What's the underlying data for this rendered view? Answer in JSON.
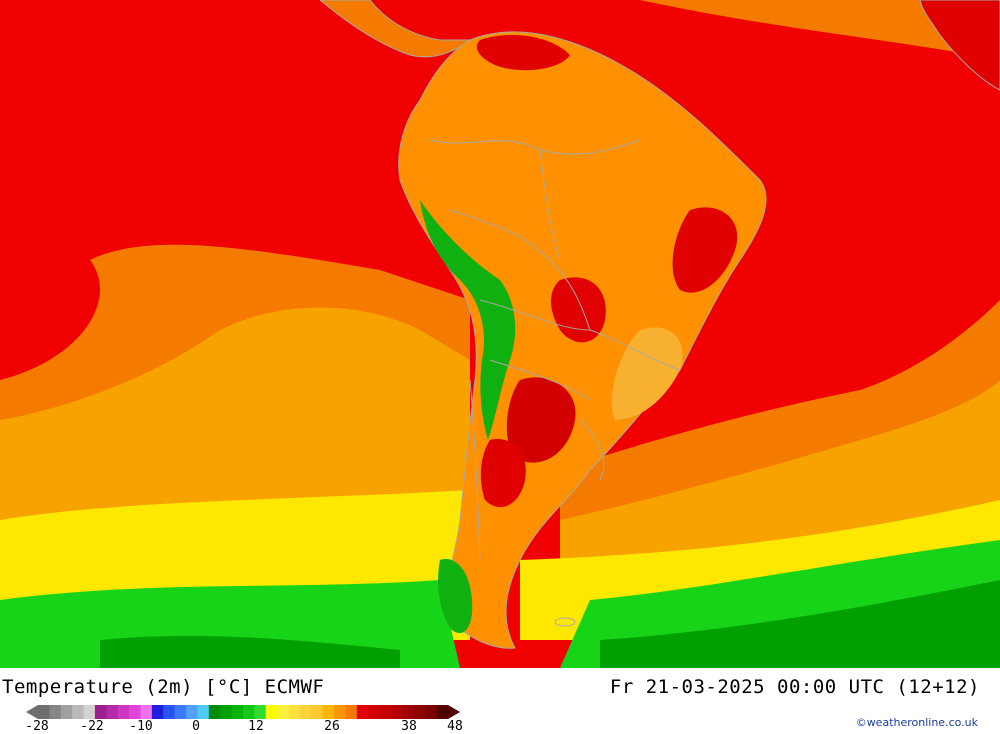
{
  "map": {
    "colors": {
      "ocean_hot": "#f00000",
      "ocean_orange": "#f57a00",
      "ocean_lightorange": "#f8a200",
      "ocean_yellow": "#ffe800",
      "ocean_green": "#18d418",
      "ocean_darkgreen": "#00a000",
      "land_orange": "#ff9000",
      "land_hot": "#e00000",
      "andes_green": "#10b010",
      "borders": "#a8a8a8"
    }
  },
  "footer": {
    "title_left": "Temperature (2m) [°C] ECMWF",
    "title_right": "Fr 21-03-2025 00:00 UTC (12+12)",
    "credit": "©weatheronline.co.uk"
  },
  "legend": {
    "colors": [
      "#6e6e6e",
      "#878787",
      "#a0a0a0",
      "#b9b9b9",
      "#d2d2d2",
      "#9a1e8c",
      "#b428aa",
      "#cc36c4",
      "#e046dc",
      "#f070f0",
      "#1e1edc",
      "#2855f0",
      "#3c78f8",
      "#50a0fa",
      "#50c8fa",
      "#008c00",
      "#00a000",
      "#00b400",
      "#14c814",
      "#32dc32",
      "#fffa00",
      "#fff03c",
      "#ffe13c",
      "#ffd23c",
      "#ffc832",
      "#ffb400",
      "#fa9600",
      "#f57800",
      "#e00000",
      "#d20000",
      "#c80000",
      "#b40000",
      "#a00000",
      "#8c0000",
      "#780000",
      "#500000"
    ],
    "ticks": [
      "-28",
      "-22",
      "-10",
      "0",
      "12",
      "26",
      "38",
      "48"
    ]
  }
}
